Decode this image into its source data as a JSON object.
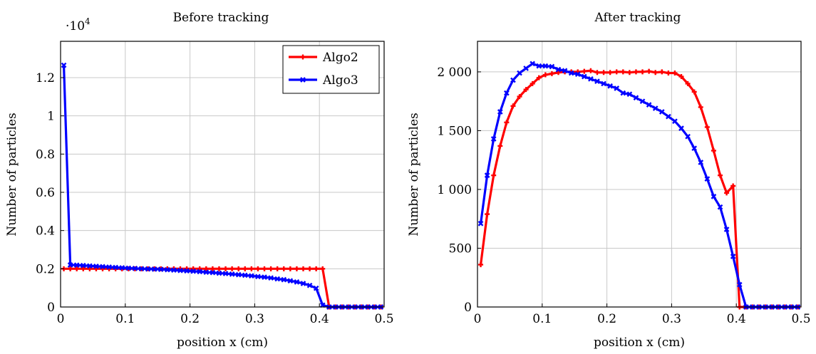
{
  "chart_data": [
    {
      "type": "line",
      "title": "Before tracking",
      "xlabel": "position x (cm)",
      "ylabel": "Number of particles",
      "y_multiplier_label": "·10",
      "y_multiplier_exponent": "4",
      "xlim": [
        0,
        0.5
      ],
      "ylim": [
        0,
        13900
      ],
      "x_ticks": [
        0,
        0.1,
        0.2,
        0.3,
        0.4,
        0.5
      ],
      "x_tick_labels": [
        "0",
        "0.1",
        "0.2",
        "0.3",
        "0.4",
        "0.5"
      ],
      "y_ticks": [
        0,
        2000,
        4000,
        6000,
        8000,
        10000,
        12000
      ],
      "y_tick_labels": [
        "0",
        "0.2",
        "0.4",
        "0.6",
        "0.8",
        "1",
        "1.2"
      ],
      "grid": true,
      "legend": "top-right",
      "x": [
        0.005,
        0.015,
        0.025,
        0.035,
        0.045,
        0.055,
        0.065,
        0.075,
        0.085,
        0.095,
        0.105,
        0.115,
        0.125,
        0.135,
        0.145,
        0.155,
        0.165,
        0.175,
        0.185,
        0.195,
        0.205,
        0.215,
        0.225,
        0.235,
        0.245,
        0.255,
        0.265,
        0.275,
        0.285,
        0.295,
        0.305,
        0.315,
        0.325,
        0.335,
        0.345,
        0.355,
        0.365,
        0.375,
        0.385,
        0.395,
        0.405,
        0.415,
        0.425,
        0.435,
        0.445,
        0.455,
        0.465,
        0.475,
        0.485,
        0.495
      ],
      "series": [
        {
          "name": "Algo2",
          "color": "#ff0000",
          "values": [
            2000,
            2000,
            2000,
            2000,
            2000,
            2000,
            2000,
            2000,
            2000,
            2000,
            2000,
            2000,
            2000,
            2000,
            2000,
            2000,
            2000,
            2000,
            2000,
            2000,
            2000,
            2000,
            2000,
            2000,
            2000,
            2000,
            2000,
            2000,
            2000,
            2000,
            2000,
            2000,
            2000,
            2000,
            2000,
            2000,
            2000,
            2000,
            2000,
            2000,
            2000,
            0,
            0,
            0,
            0,
            0,
            0,
            0,
            0,
            0
          ]
        },
        {
          "name": "Algo3",
          "color": "#0000ff",
          "values": [
            12650,
            2200,
            2190,
            2170,
            2150,
            2130,
            2110,
            2090,
            2070,
            2050,
            2030,
            2020,
            2000,
            1990,
            1980,
            1970,
            1950,
            1930,
            1910,
            1890,
            1870,
            1850,
            1820,
            1800,
            1770,
            1750,
            1720,
            1690,
            1660,
            1630,
            1590,
            1560,
            1520,
            1470,
            1430,
            1370,
            1310,
            1230,
            1130,
            980,
            100,
            0,
            0,
            0,
            0,
            0,
            0,
            0,
            0,
            0
          ]
        }
      ]
    },
    {
      "type": "line",
      "title": "After tracking",
      "xlabel": "position x (cm)",
      "ylabel": "Number of particles",
      "xlim": [
        0,
        0.5
      ],
      "ylim": [
        0,
        2260
      ],
      "x_ticks": [
        0,
        0.1,
        0.2,
        0.3,
        0.4,
        0.5
      ],
      "x_tick_labels": [
        "0",
        "0.1",
        "0.2",
        "0.3",
        "0.4",
        "0.5"
      ],
      "y_ticks": [
        0,
        500,
        1000,
        1500,
        2000
      ],
      "y_tick_labels": [
        "0",
        "500",
        "1 000",
        "1 500",
        "2 000"
      ],
      "grid": true,
      "legend": "none",
      "x": [
        0.005,
        0.015,
        0.025,
        0.035,
        0.045,
        0.055,
        0.065,
        0.075,
        0.085,
        0.095,
        0.105,
        0.115,
        0.125,
        0.135,
        0.145,
        0.155,
        0.165,
        0.175,
        0.185,
        0.195,
        0.205,
        0.215,
        0.225,
        0.235,
        0.245,
        0.255,
        0.265,
        0.275,
        0.285,
        0.295,
        0.305,
        0.315,
        0.325,
        0.335,
        0.345,
        0.355,
        0.365,
        0.375,
        0.385,
        0.395,
        0.405,
        0.415,
        0.425,
        0.435,
        0.445,
        0.455,
        0.465,
        0.475,
        0.485,
        0.495
      ],
      "series": [
        {
          "name": "Algo2",
          "color": "#ff0000",
          "values": [
            360,
            790,
            1120,
            1370,
            1570,
            1710,
            1790,
            1850,
            1900,
            1950,
            1975,
            1985,
            1995,
            2000,
            2000,
            2000,
            2005,
            2010,
            1995,
            1995,
            1995,
            2000,
            2000,
            1995,
            2000,
            2000,
            2005,
            1995,
            2000,
            1990,
            1990,
            1960,
            1900,
            1830,
            1700,
            1530,
            1330,
            1120,
            970,
            1030,
            0,
            0,
            0,
            0,
            0,
            0,
            0,
            0,
            0,
            0
          ]
        },
        {
          "name": "Algo3",
          "color": "#0000ff",
          "values": [
            710,
            1120,
            1430,
            1660,
            1820,
            1930,
            1990,
            2030,
            2070,
            2050,
            2050,
            2045,
            2020,
            2010,
            1990,
            1980,
            1960,
            1940,
            1920,
            1900,
            1880,
            1860,
            1820,
            1810,
            1780,
            1750,
            1720,
            1690,
            1660,
            1620,
            1580,
            1520,
            1450,
            1350,
            1230,
            1090,
            940,
            850,
            660,
            430,
            190,
            0,
            0,
            0,
            0,
            0,
            0,
            0,
            0,
            0
          ]
        }
      ]
    }
  ]
}
